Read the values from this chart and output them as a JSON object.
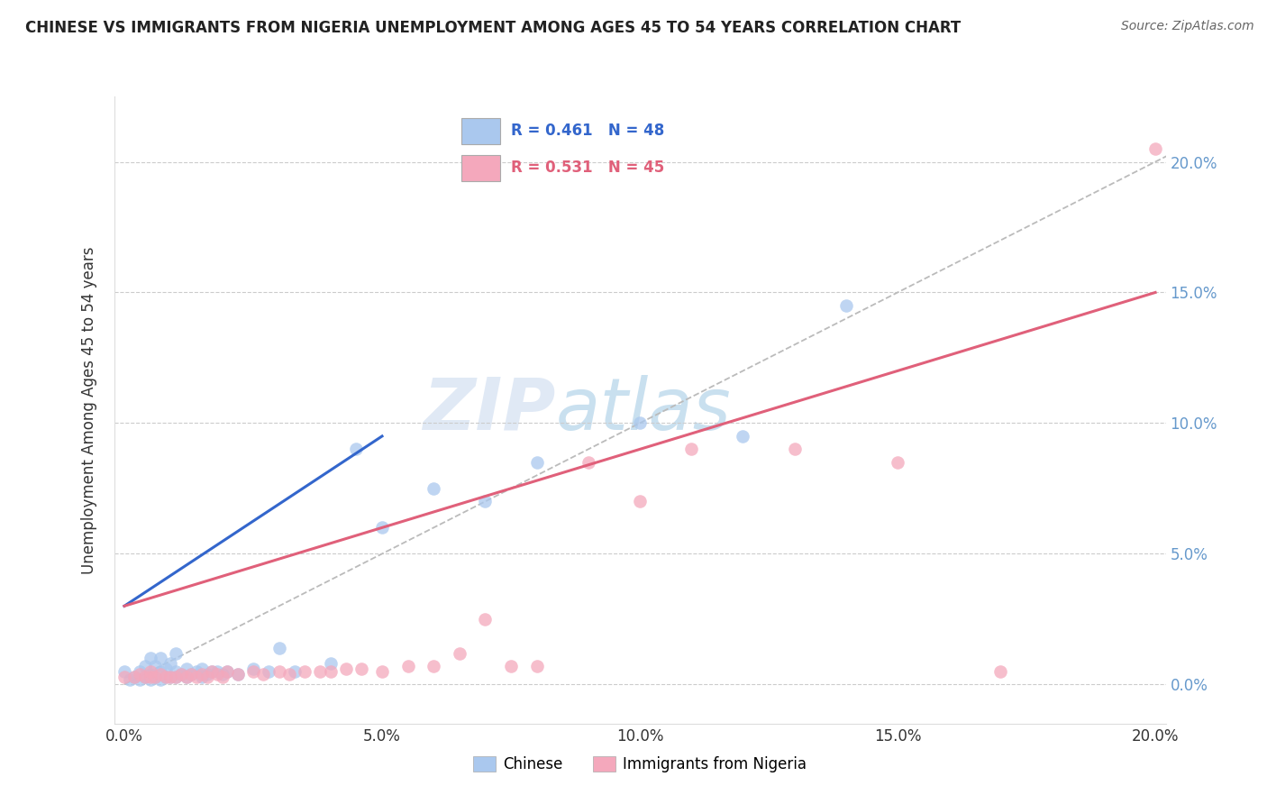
{
  "title": "CHINESE VS IMMIGRANTS FROM NIGERIA UNEMPLOYMENT AMONG AGES 45 TO 54 YEARS CORRELATION CHART",
  "source": "Source: ZipAtlas.com",
  "ylabel": "Unemployment Among Ages 45 to 54 years",
  "legend_chinese": "Chinese",
  "legend_nigeria": "Immigrants from Nigeria",
  "R_chinese": 0.461,
  "N_chinese": 48,
  "R_nigeria": 0.531,
  "N_nigeria": 45,
  "color_chinese": "#aac8ee",
  "color_nigeria": "#f4a8bc",
  "line_color_chinese": "#3366cc",
  "line_color_nigeria": "#e0607a",
  "tick_color": "#6699cc",
  "xlim": [
    -0.002,
    0.202
  ],
  "ylim": [
    -0.015,
    0.225
  ],
  "xticks": [
    0.0,
    0.05,
    0.1,
    0.15,
    0.2
  ],
  "yticks": [
    0.0,
    0.05,
    0.1,
    0.15,
    0.2
  ],
  "xtick_labels": [
    "0.0%",
    "5.0%",
    "10.0%",
    "15.0%",
    "20.0%"
  ],
  "ytick_labels": [
    "0.0%",
    "5.0%",
    "10.0%",
    "15.0%",
    "20.0%"
  ],
  "watermark_zip": "ZIP",
  "watermark_atlas": "atlas",
  "chinese_x": [
    0.0,
    0.001,
    0.002,
    0.003,
    0.003,
    0.004,
    0.004,
    0.005,
    0.005,
    0.005,
    0.006,
    0.006,
    0.007,
    0.007,
    0.007,
    0.008,
    0.008,
    0.009,
    0.009,
    0.01,
    0.01,
    0.01,
    0.011,
    0.012,
    0.012,
    0.013,
    0.014,
    0.015,
    0.015,
    0.016,
    0.017,
    0.018,
    0.019,
    0.02,
    0.022,
    0.025,
    0.028,
    0.03,
    0.033,
    0.04,
    0.045,
    0.05,
    0.06,
    0.07,
    0.08,
    0.1,
    0.12,
    0.14
  ],
  "chinese_y": [
    0.005,
    0.002,
    0.003,
    0.002,
    0.005,
    0.003,
    0.007,
    0.002,
    0.004,
    0.01,
    0.003,
    0.007,
    0.002,
    0.005,
    0.01,
    0.003,
    0.006,
    0.003,
    0.008,
    0.003,
    0.005,
    0.012,
    0.004,
    0.003,
    0.006,
    0.004,
    0.005,
    0.003,
    0.006,
    0.004,
    0.005,
    0.005,
    0.004,
    0.005,
    0.004,
    0.006,
    0.005,
    0.014,
    0.005,
    0.008,
    0.09,
    0.06,
    0.075,
    0.07,
    0.085,
    0.1,
    0.095,
    0.145
  ],
  "nigeria_x": [
    0.0,
    0.002,
    0.003,
    0.004,
    0.005,
    0.005,
    0.006,
    0.007,
    0.008,
    0.009,
    0.01,
    0.011,
    0.012,
    0.013,
    0.014,
    0.015,
    0.016,
    0.017,
    0.018,
    0.019,
    0.02,
    0.022,
    0.025,
    0.027,
    0.03,
    0.032,
    0.035,
    0.038,
    0.04,
    0.043,
    0.046,
    0.05,
    0.055,
    0.06,
    0.065,
    0.07,
    0.075,
    0.08,
    0.09,
    0.1,
    0.11,
    0.13,
    0.15,
    0.17,
    0.2
  ],
  "nigeria_y": [
    0.003,
    0.003,
    0.004,
    0.003,
    0.003,
    0.005,
    0.003,
    0.004,
    0.003,
    0.003,
    0.003,
    0.004,
    0.003,
    0.004,
    0.003,
    0.004,
    0.003,
    0.005,
    0.004,
    0.003,
    0.005,
    0.004,
    0.005,
    0.004,
    0.005,
    0.004,
    0.005,
    0.005,
    0.005,
    0.006,
    0.006,
    0.005,
    0.007,
    0.007,
    0.012,
    0.025,
    0.007,
    0.007,
    0.085,
    0.07,
    0.09,
    0.09,
    0.085,
    0.005,
    0.205
  ],
  "blue_line_x0": 0.0,
  "blue_line_x1": 0.05,
  "blue_line_y0": 0.03,
  "blue_line_y1": 0.095,
  "pink_line_x0": 0.0,
  "pink_line_x1": 0.2,
  "pink_line_y0": 0.03,
  "pink_line_y1": 0.15
}
